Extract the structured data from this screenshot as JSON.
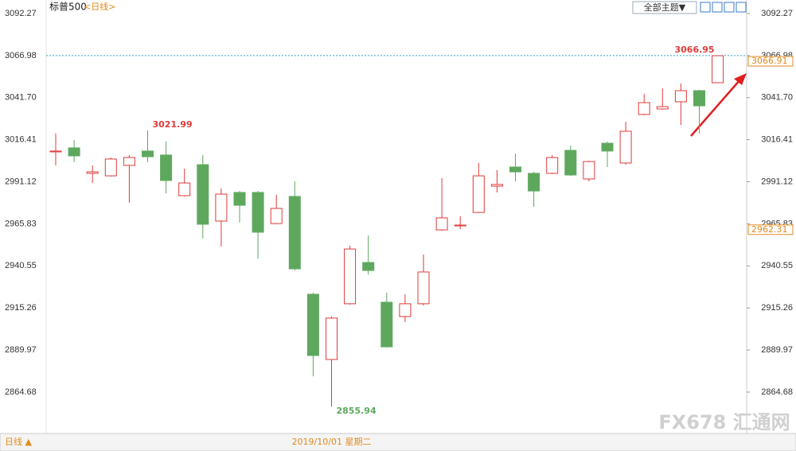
{
  "chart_data": {
    "type": "candlestick",
    "title": "标普500",
    "subtitle": "<日线>",
    "theme_button": "全部主题▼",
    "period_label": "日线 ▲",
    "watermark": "FX678 汇通网",
    "up_color": "#e03a3a",
    "down_color": "#5ea85e",
    "ylim": [
      2839.8,
      3100.4
    ],
    "yticks": [
      3092.27,
      3066.98,
      {
        "value": 3041.7,
        "label": "3041.70"
      },
      3016.41,
      2991.12,
      2965.83,
      2940.55,
      2915.26,
      2889.97,
      2864.68
    ],
    "reference_line": 3066.98,
    "price_boxes": [
      3066.91,
      2962.31
    ],
    "annotations": [
      3021.99,
      2855.94,
      3066.95
    ],
    "categories": [
      null,
      null,
      null,
      null,
      null,
      null,
      null,
      null,
      null,
      null,
      null,
      null,
      null,
      null,
      null,
      "2019/10/01 星期二",
      null,
      null,
      null,
      null,
      null,
      null,
      null,
      null,
      null,
      null,
      null,
      null,
      null,
      null,
      null,
      null,
      null,
      null,
      null,
      null,
      null
    ],
    "ohlc": [
      {
        "open": 3009.1,
        "high": 3020.1,
        "low": 3001.0,
        "close": 3009.6
      },
      {
        "open": 3011.5,
        "high": 3016.3,
        "low": 3002.9,
        "close": 3006.7
      },
      {
        "open": 2996.2,
        "high": 3001.0,
        "low": 2990.4,
        "close": 2997.1
      },
      {
        "open": 2994.7,
        "high": 3005.7,
        "low": 2994.3,
        "close": 3004.8
      },
      {
        "open": 3001.0,
        "high": 3007.2,
        "low": 2978.5,
        "close": 3005.7
      },
      {
        "open": 3009.6,
        "high": 3021.99,
        "low": 3002.9,
        "close": 3006.2
      },
      {
        "open": 3007.2,
        "high": 3015.3,
        "low": 2984.2,
        "close": 2991.9
      },
      {
        "open": 2982.8,
        "high": 2999.0,
        "low": 2982.3,
        "close": 2990.4
      },
      {
        "open": 3001.4,
        "high": 3007.2,
        "low": 2957.0,
        "close": 2965.6
      },
      {
        "open": 2967.5,
        "high": 2987.1,
        "low": 2952.2,
        "close": 2983.7
      },
      {
        "open": 2984.7,
        "high": 2985.6,
        "low": 2966.5,
        "close": 2977.0
      },
      {
        "open": 2984.7,
        "high": 2985.6,
        "low": 2945.0,
        "close": 2960.8
      },
      {
        "open": 2966.0,
        "high": 2983.3,
        "low": 2965.6,
        "close": 2975.1
      },
      {
        "open": 2982.3,
        "high": 2991.4,
        "low": 2937.8,
        "close": 2938.8
      },
      {
        "open": 2923.5,
        "high": 2924.5,
        "low": 2874.2,
        "close": 2886.7
      },
      {
        "open": 2884.3,
        "high": 2910.1,
        "low": 2855.94,
        "close": 2909.2
      },
      {
        "open": 2917.8,
        "high": 2952.7,
        "low": 2917.3,
        "close": 2950.7
      },
      {
        "open": 2942.6,
        "high": 2958.9,
        "low": 2935.4,
        "close": 2937.8
      },
      {
        "open": 2918.7,
        "high": 2924.5,
        "low": 2891.5,
        "close": 2891.9
      },
      {
        "open": 2910.1,
        "high": 2923.5,
        "low": 2906.8,
        "close": 2917.8
      },
      {
        "open": 2917.8,
        "high": 2947.4,
        "low": 2916.8,
        "close": 2936.9
      },
      {
        "open": 2962.2,
        "high": 2993.3,
        "low": 2961.7,
        "close": 2969.4
      },
      {
        "open": 2964.6,
        "high": 2970.4,
        "low": 2962.7,
        "close": 2965.1
      },
      {
        "open": 2972.7,
        "high": 3002.4,
        "low": 2972.3,
        "close": 2994.7
      },
      {
        "open": 2988.5,
        "high": 2998.1,
        "low": 2984.7,
        "close": 2989.5
      },
      {
        "open": 3000.0,
        "high": 3008.1,
        "low": 2991.4,
        "close": 2997.1
      },
      {
        "open": 2996.2,
        "high": 2997.1,
        "low": 2976.1,
        "close": 2985.6
      },
      {
        "open": 2996.2,
        "high": 3007.2,
        "low": 2995.7,
        "close": 3005.7
      },
      {
        "open": 3010.0,
        "high": 3012.9,
        "low": 2994.7,
        "close": 2995.2
      },
      {
        "open": 2992.8,
        "high": 3003.8,
        "low": 2991.4,
        "close": 3003.3
      },
      {
        "open": 3014.3,
        "high": 3015.3,
        "low": 3000.0,
        "close": 3009.6
      },
      {
        "open": 3002.4,
        "high": 3027.2,
        "low": 3001.4,
        "close": 3021.5
      },
      {
        "open": 3031.6,
        "high": 3044.0,
        "low": 3031.1,
        "close": 3038.7
      },
      {
        "open": 3034.9,
        "high": 3047.3,
        "low": 3034.4,
        "close": 3036.3
      },
      {
        "open": 3039.2,
        "high": 3050.2,
        "low": 3025.3,
        "close": 3045.9
      },
      {
        "open": 3045.9,
        "high": 3046.4,
        "low": 3020.1,
        "close": 3036.8
      },
      {
        "open": 3050.67,
        "high": 3066.95,
        "low": 3050.67,
        "close": 3066.91
      }
    ]
  }
}
